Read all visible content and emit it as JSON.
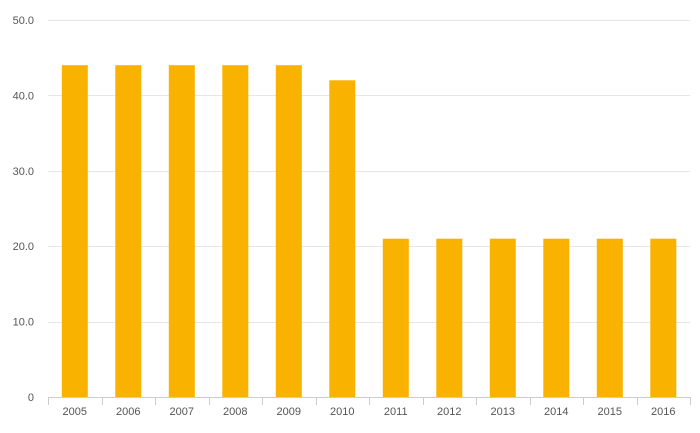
{
  "chart_data": {
    "type": "bar",
    "categories": [
      "2005",
      "2006",
      "2007",
      "2008",
      "2009",
      "2010",
      "2011",
      "2012",
      "2013",
      "2014",
      "2015",
      "2016"
    ],
    "values": [
      44,
      44,
      44,
      44,
      44,
      42,
      21,
      21,
      21,
      21,
      21,
      21
    ],
    "ylim": [
      0,
      50
    ],
    "yticks": [
      0,
      10,
      20,
      30,
      40,
      50
    ],
    "ytick_labels": [
      "0",
      "10.0",
      "20.0",
      "30.0",
      "40.0",
      "50.0"
    ],
    "bar_color": "#f9b200",
    "grid": true,
    "legend": "none"
  }
}
